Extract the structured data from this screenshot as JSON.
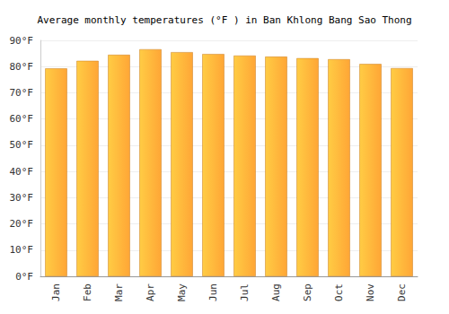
{
  "chart_data": {
    "type": "bar",
    "title": "Average monthly temperatures (°F ) in Ban Khlong Bang Sao Thong",
    "categories": [
      "Jan",
      "Feb",
      "Mar",
      "Apr",
      "May",
      "Jun",
      "Jul",
      "Aug",
      "Sep",
      "Oct",
      "Nov",
      "Dec"
    ],
    "values": [
      79.3,
      82.2,
      84.5,
      86.6,
      85.5,
      84.8,
      84.2,
      83.8,
      83.2,
      82.8,
      81.0,
      79.4
    ],
    "color": "#ffa636",
    "ylim": [
      0,
      90
    ],
    "yticks": [
      {
        "value": 0,
        "label": "0°F"
      },
      {
        "value": 10,
        "label": "10°F"
      },
      {
        "value": 20,
        "label": "20°F"
      },
      {
        "value": 30,
        "label": "30°F"
      },
      {
        "value": 40,
        "label": "40°F"
      },
      {
        "value": 50,
        "label": "50°F"
      },
      {
        "value": 60,
        "label": "60°F"
      },
      {
        "value": 70,
        "label": "70°F"
      },
      {
        "value": 80,
        "label": "80°F"
      },
      {
        "value": 90,
        "label": "90°F"
      }
    ],
    "grid": true
  }
}
